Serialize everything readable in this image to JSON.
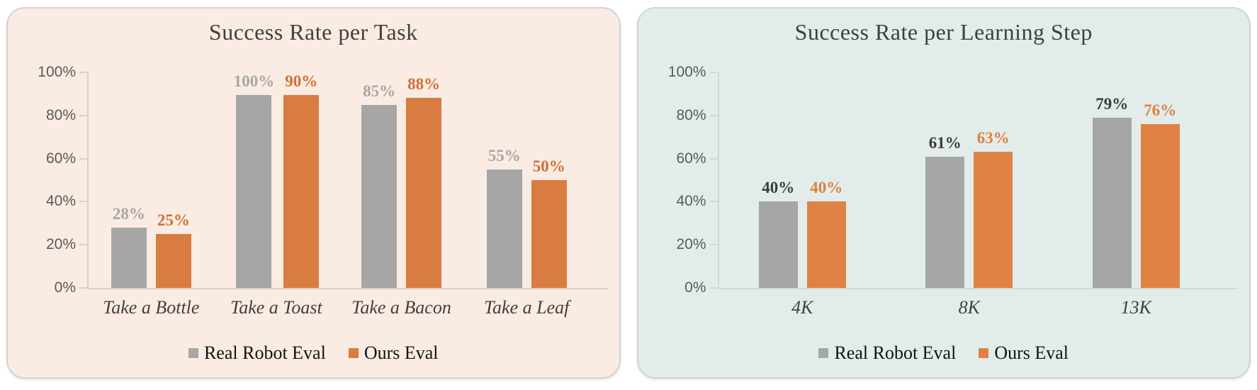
{
  "page": {
    "background": "#FFFFFF"
  },
  "chart_data": [
    {
      "type": "bar",
      "title": "Success Rate per Task",
      "categories": [
        "Take a Bottle",
        "Take a Toast",
        "Take a Bacon",
        "Take a Leaf"
      ],
      "series": [
        {
          "name": "Real Robot Eval",
          "values": [
            28,
            100,
            85,
            55
          ],
          "color": "#A6A6A6",
          "label_color": "#A6A6A6"
        },
        {
          "name": "Ours Eval",
          "values": [
            25,
            90,
            88,
            50
          ],
          "color": "#D87C42",
          "label_color": "#CF6F38"
        }
      ],
      "value_suffix": "%",
      "ylim": [
        0,
        100
      ],
      "ytick_step": 20,
      "yticks": [
        "0%",
        "20%",
        "40%",
        "60%",
        "80%",
        "100%"
      ],
      "grid": false,
      "legend_position": "bottom",
      "card_background": "#FAECE2",
      "axis_color": "#DDCFC7",
      "title_color": "#3F3F3F",
      "ytick_color": "#595959",
      "xtick_color": "#3F3F3F"
    },
    {
      "type": "bar",
      "title": "Success Rate per Learning Step",
      "categories": [
        "4K",
        "8K",
        "13K"
      ],
      "series": [
        {
          "name": "Real Robot Eval",
          "values": [
            40,
            61,
            79
          ],
          "color": "#A6A6A6",
          "label_color": "#3B3B3B"
        },
        {
          "name": "Ours Eval",
          "values": [
            40,
            63,
            76
          ],
          "color": "#DF8244",
          "label_color": "#DF8040"
        }
      ],
      "value_suffix": "%",
      "ylim": [
        0,
        100
      ],
      "ytick_step": 20,
      "yticks": [
        "0%",
        "20%",
        "40%",
        "60%",
        "80%",
        "100%"
      ],
      "grid": false,
      "legend_position": "bottom",
      "card_background": "#E2EDEB",
      "axis_color": "#CBDBD8",
      "title_color": "#3F3F3F",
      "ytick_color": "#595959",
      "xtick_color": "#3F3F3F"
    }
  ]
}
